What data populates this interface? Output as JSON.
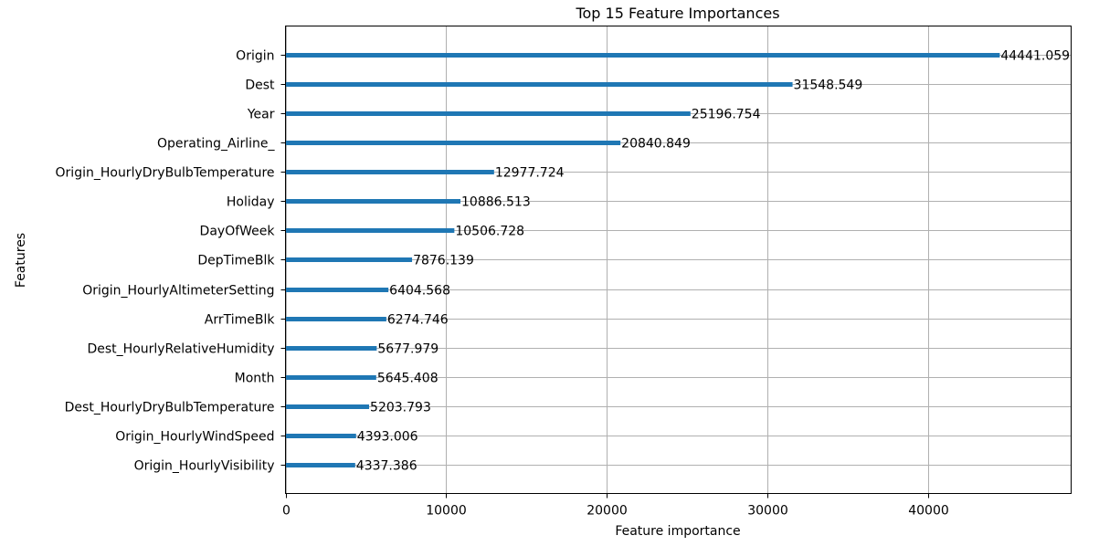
{
  "chart_data": {
    "type": "bar",
    "orientation": "horizontal",
    "title": "Top 15 Feature Importances",
    "xlabel": "Feature importance",
    "ylabel": "Features",
    "xlim": [
      0,
      48882
    ],
    "xticks": [
      0,
      10000,
      20000,
      30000,
      40000
    ],
    "grid": true,
    "bar_color": "#1f77b4",
    "categories": [
      "Origin",
      "Dest",
      "Year",
      "Operating_Airline_",
      "Origin_HourlyDryBulbTemperature",
      "Holiday",
      "DayOfWeek",
      "DepTimeBlk",
      "Origin_HourlyAltimeterSetting",
      "ArrTimeBlk",
      "Dest_HourlyRelativeHumidity",
      "Month",
      "Dest_HourlyDryBulbTemperature",
      "Origin_HourlyWindSpeed",
      "Origin_HourlyVisibility"
    ],
    "values": [
      44441.059,
      31548.549,
      25196.754,
      20840.849,
      12977.724,
      10886.513,
      10506.728,
      7876.139,
      6404.568,
      6274.746,
      5677.979,
      5645.408,
      5203.793,
      4393.006,
      4337.386
    ],
    "value_labels": [
      "44441.059",
      "31548.549",
      "25196.754",
      "20840.849",
      "12977.724",
      "10886.513",
      "10506.728",
      "7876.139",
      "6404.568",
      "6274.746",
      "5677.979",
      "5645.408",
      "5203.793",
      "4393.006",
      "4337.386"
    ]
  }
}
